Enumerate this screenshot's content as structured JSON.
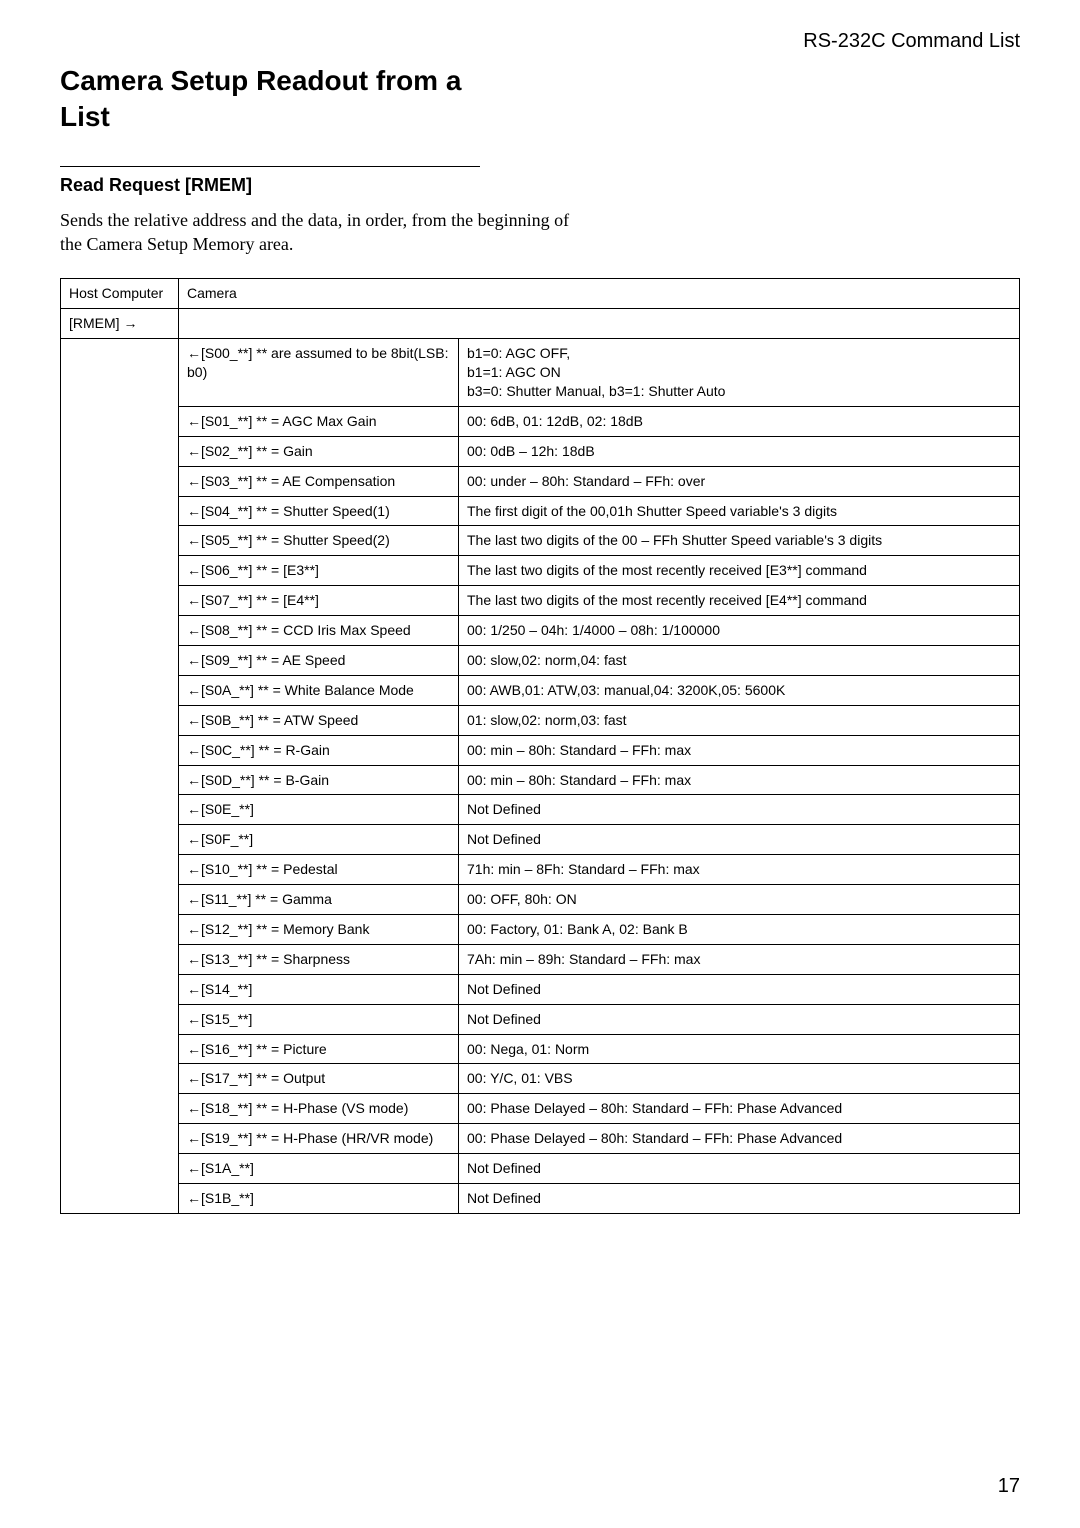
{
  "header": {
    "right": "RS-232C Command List"
  },
  "title": "Camera Setup Readout from a List",
  "section": {
    "heading": "Read Request [RMEM]",
    "body": "Sends the relative address and the data, in order, from the beginning of the Camera Setup Memory area."
  },
  "table": {
    "headers": {
      "host": "Host Computer",
      "camera": "Camera"
    },
    "rmem_row": {
      "host": "[RMEM] →",
      "camera": ""
    },
    "rows": [
      {
        "desc": "←[S00_**]  ** are assumed to be 8bit(LSB: b0)",
        "val": "b1=0: AGC OFF,\nb1=1: AGC ON\nb3=0: Shutter Manual, b3=1: Shutter Auto"
      },
      {
        "desc": "←[S01_**]  ** = AGC Max Gain",
        "val": "00: 6dB, 01: 12dB, 02: 18dB"
      },
      {
        "desc": "←[S02_**]  ** = Gain",
        "val": "00: 0dB – 12h: 18dB"
      },
      {
        "desc": "←[S03_**]  ** = AE Compensation",
        "val": "00: under – 80h: Standard – FFh: over"
      },
      {
        "desc": "←[S04_**]  ** = Shutter Speed(1)",
        "val": "The first digit of the 00,01h Shutter Speed variable's 3 digits"
      },
      {
        "desc": "←[S05_**]  ** = Shutter Speed(2)",
        "val": "The last two digits of the 00 – FFh Shutter Speed variable's 3 digits"
      },
      {
        "desc": "←[S06_**]  ** = [E3**]",
        "val": "The last two digits of the most recently received [E3**] command"
      },
      {
        "desc": "←[S07_**]  ** = [E4**]",
        "val": "The last two digits of the most recently received [E4**] command"
      },
      {
        "desc": "←[S08_**]  ** = CCD Iris Max Speed",
        "val": "00: 1/250 – 04h: 1/4000 – 08h: 1/100000"
      },
      {
        "desc": "←[S09_**]  ** = AE Speed",
        "val": "00: slow,02: norm,04: fast"
      },
      {
        "desc": "←[S0A_**]  ** = White Balance Mode",
        "val": "00: AWB,01: ATW,03: manual,04: 3200K,05: 5600K"
      },
      {
        "desc": "←[S0B_**]  ** = ATW Speed",
        "val": "01: slow,02: norm,03: fast"
      },
      {
        "desc": "←[S0C_**]  ** = R-Gain",
        "val": "00: min – 80h: Standard – FFh: max"
      },
      {
        "desc": "←[S0D_**]  ** = B-Gain",
        "val": "00: min – 80h: Standard – FFh: max"
      },
      {
        "desc": "←[S0E_**]",
        "val": "Not Defined"
      },
      {
        "desc": "←[S0F_**]",
        "val": "Not Defined"
      },
      {
        "desc": "←[S10_**]  ** = Pedestal",
        "val": "71h: min – 8Fh: Standard – FFh: max"
      },
      {
        "desc": "←[S11_**]  ** = Gamma",
        "val": "00: OFF, 80h: ON"
      },
      {
        "desc": "←[S12_**]  ** = Memory Bank",
        "val": "00: Factory, 01: Bank A, 02: Bank B"
      },
      {
        "desc": "←[S13_**]  ** = Sharpness",
        "val": "7Ah: min – 89h: Standard – FFh: max"
      },
      {
        "desc": "←[S14_**]",
        "val": "Not Defined"
      },
      {
        "desc": "←[S15_**]",
        "val": "Not Defined"
      },
      {
        "desc": "←[S16_**]  ** = Picture",
        "val": "00: Nega, 01: Norm"
      },
      {
        "desc": "←[S17_**]  ** = Output",
        "val": "00: Y/C, 01: VBS"
      },
      {
        "desc": "←[S18_**]  ** = H-Phase (VS mode)",
        "val": "00: Phase Delayed – 80h: Standard – FFh: Phase Advanced"
      },
      {
        "desc": "←[S19_**]  ** = H-Phase (HR/VR mode)",
        "val": "00: Phase Delayed – 80h: Standard – FFh: Phase Advanced"
      },
      {
        "desc": "←[S1A_**]",
        "val": "Not Defined"
      },
      {
        "desc": "←[S1B_**]",
        "val": "Not Defined"
      }
    ]
  },
  "page_number": "17"
}
